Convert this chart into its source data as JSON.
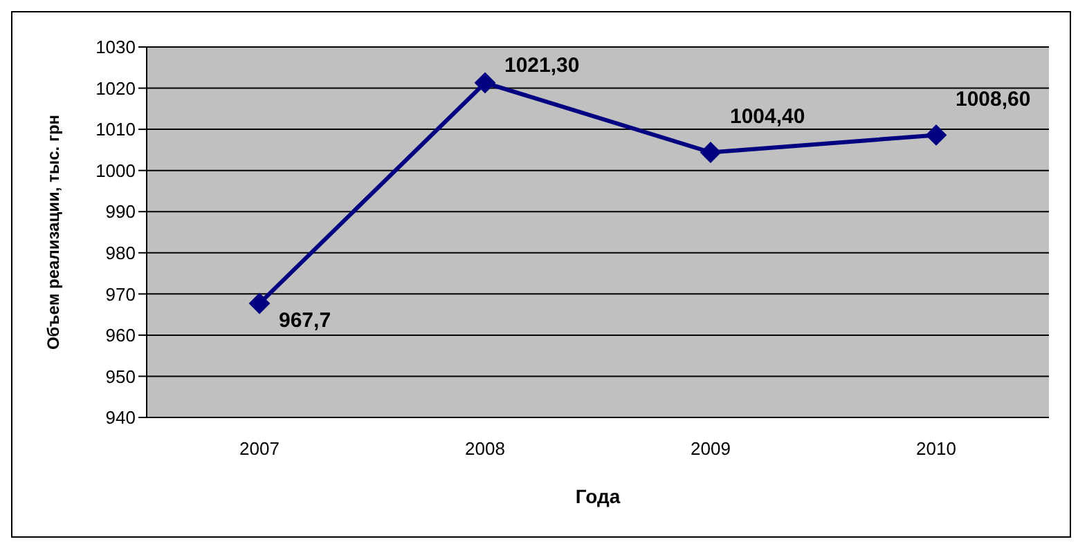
{
  "chart_data": {
    "type": "line",
    "xlabel": "Года",
    "ylabel": "Объем реализации, тыс. грн",
    "categories": [
      "2007",
      "2008",
      "2009",
      "2010"
    ],
    "series": [
      {
        "color": "#000080",
        "values": [
          967.7,
          1021.3,
          1004.4,
          1008.6
        ],
        "value_labels": [
          "967,7",
          "1021,30",
          "1004,40",
          "1008,60"
        ]
      }
    ],
    "ylim": [
      940,
      1030
    ],
    "yticks": [
      940,
      950,
      960,
      970,
      980,
      990,
      1000,
      1010,
      1020,
      1030
    ],
    "grid": "y",
    "marker": "diamond",
    "line_style": "solid",
    "legend": false
  }
}
